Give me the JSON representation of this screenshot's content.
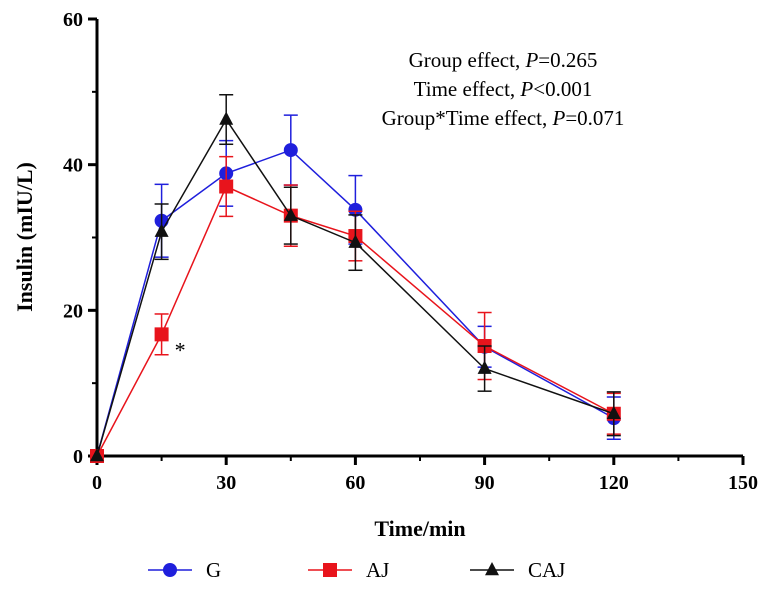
{
  "chart_data": {
    "type": "line",
    "xlabel": "Time/min",
    "ylabel": "Insulin (mIU/L)",
    "xlim": [
      0,
      150
    ],
    "ylim": [
      0,
      60
    ],
    "xticks": [
      "0",
      "30",
      "60",
      "90",
      "120",
      "150"
    ],
    "yticks": [
      "0",
      "20",
      "40",
      "60"
    ],
    "grid": false,
    "legend_position": "bottom",
    "annotations": [
      {
        "prefix": "Group effect, ",
        "italic": "P",
        "suffix": "=0.265"
      },
      {
        "prefix": "Time effect, ",
        "italic": "P",
        "suffix": "<0.001"
      },
      {
        "prefix": "Group*Time effect, ",
        "italic": "P",
        "suffix": "=0.071"
      }
    ],
    "significance_marker": {
      "text": "*",
      "series": "AJ",
      "x": 15
    },
    "series": [
      {
        "name": "G",
        "color": "#1f1fdc",
        "marker": "circle",
        "x": [
          0,
          15,
          30,
          45,
          60,
          90,
          120
        ],
        "y": [
          0,
          32.3,
          38.8,
          42.0,
          33.8,
          15.0,
          5.2
        ],
        "error": [
          0,
          5.0,
          4.5,
          4.8,
          4.7,
          2.8,
          2.9
        ]
      },
      {
        "name": "AJ",
        "color": "#e8141c",
        "marker": "square",
        "x": [
          0,
          15,
          30,
          45,
          60,
          90,
          120
        ],
        "y": [
          0,
          16.7,
          37.0,
          33.0,
          30.2,
          15.1,
          5.8
        ],
        "error": [
          0,
          2.8,
          4.1,
          4.2,
          3.4,
          4.6,
          2.8
        ]
      },
      {
        "name": "CAJ",
        "color": "#111111",
        "marker": "triangle",
        "x": [
          0,
          15,
          30,
          45,
          60,
          90,
          120
        ],
        "y": [
          0,
          30.8,
          46.2,
          33.0,
          29.3,
          12.0,
          5.8
        ],
        "error": [
          0,
          3.8,
          3.4,
          3.9,
          3.8,
          3.1,
          3.0
        ]
      }
    ]
  }
}
